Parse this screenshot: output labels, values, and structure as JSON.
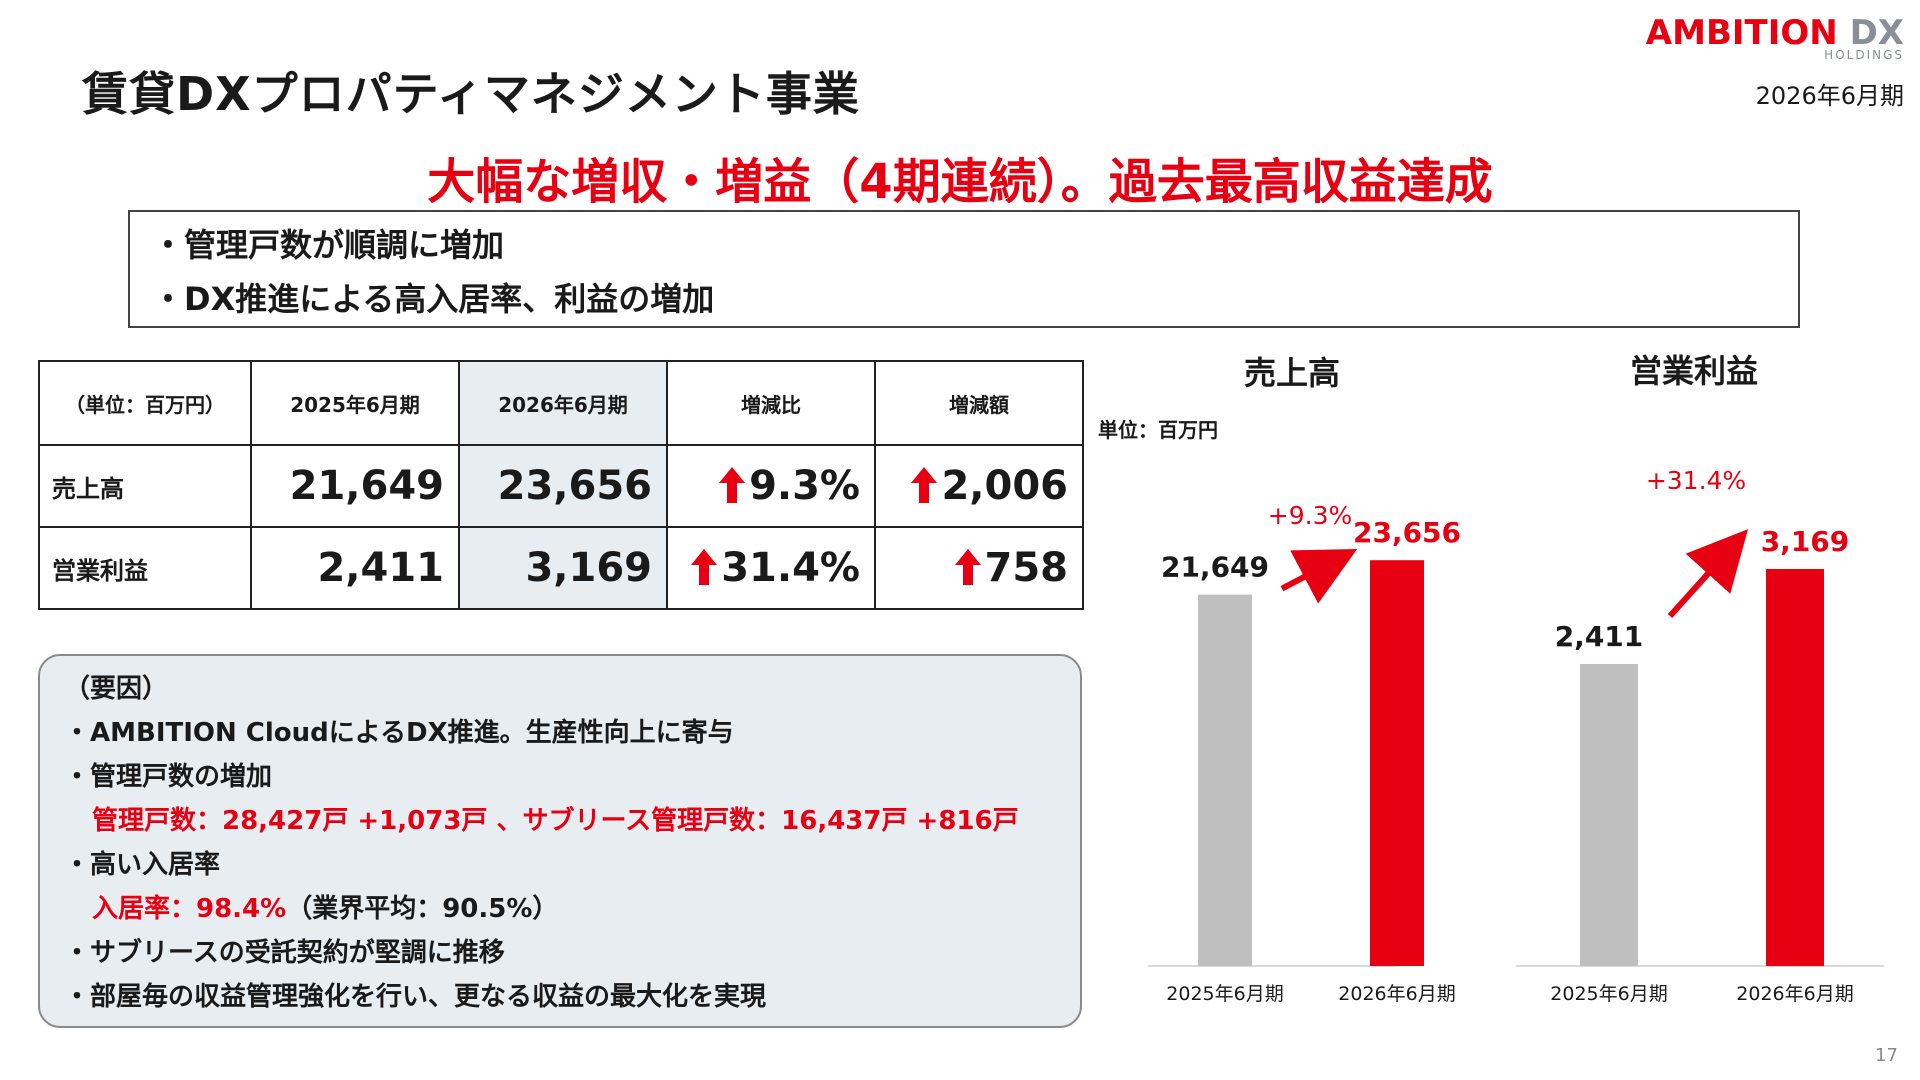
{
  "header": {
    "title": "賃貸DXプロパティマネジメント事業",
    "logo_main_red": "AMBITION",
    "logo_main_gray": "DX",
    "logo_sub": "HOLDINGS",
    "period": "2026年6月期"
  },
  "headline": "大幅な増収・増益（4期連続）。過去最高収益達成",
  "summary": [
    "・管理戸数が順調に増加",
    "・DX推進による高入居率、利益の増加"
  ],
  "table": {
    "headers": [
      "（単位：百万円）",
      "2025年6月期",
      "2026年6月期",
      "増減比",
      "増減額"
    ],
    "rows": [
      {
        "label": "売上高",
        "prev": "21,649",
        "curr": "23,656",
        "ratio": "9.3%",
        "diff": "2,006"
      },
      {
        "label": "営業利益",
        "prev": "2,411",
        "curr": "3,169",
        "ratio": "31.4%",
        "diff": "758"
      }
    ]
  },
  "factors": {
    "heading": "（要因）",
    "l1": "・AMBITION CloudによるDX推進。生産性向上に寄与",
    "l2": "・管理戸数の増加",
    "l3_red": "管理戸数：28,427戸 +1,073戸 、サブリース管理戸数：16,437戸 +816戸",
    "l4": "・高い入居率",
    "l5_red": "入居率：98.4%",
    "l5_rest": "（業界平均：90.5%）",
    "l6": "・サブリースの受託契約が堅調に推移",
    "l7": "・部屋毎の収益管理強化を行い、更なる収益の最大化を実現"
  },
  "chart_unit": "単位：百万円",
  "colors": {
    "accent": "#e60012",
    "prev_bar": "#bfbfbf",
    "highlight_bg": "#e8edf2"
  },
  "chart_data": [
    {
      "type": "bar",
      "title": "売上高",
      "categories": [
        "2025年6月期",
        "2026年6月期"
      ],
      "values": [
        21649,
        23656
      ],
      "value_labels": [
        "21,649",
        "23,656"
      ],
      "change_label": "+9.3%",
      "ylim": [
        0,
        26000
      ]
    },
    {
      "type": "bar",
      "title": "営業利益",
      "categories": [
        "2025年6月期",
        "2026年6月期"
      ],
      "values": [
        2411,
        3169
      ],
      "value_labels": [
        "2,411",
        "3,169"
      ],
      "change_label": "+31.4%",
      "ylim": [
        0,
        3560
      ]
    }
  ],
  "page_number": "17"
}
